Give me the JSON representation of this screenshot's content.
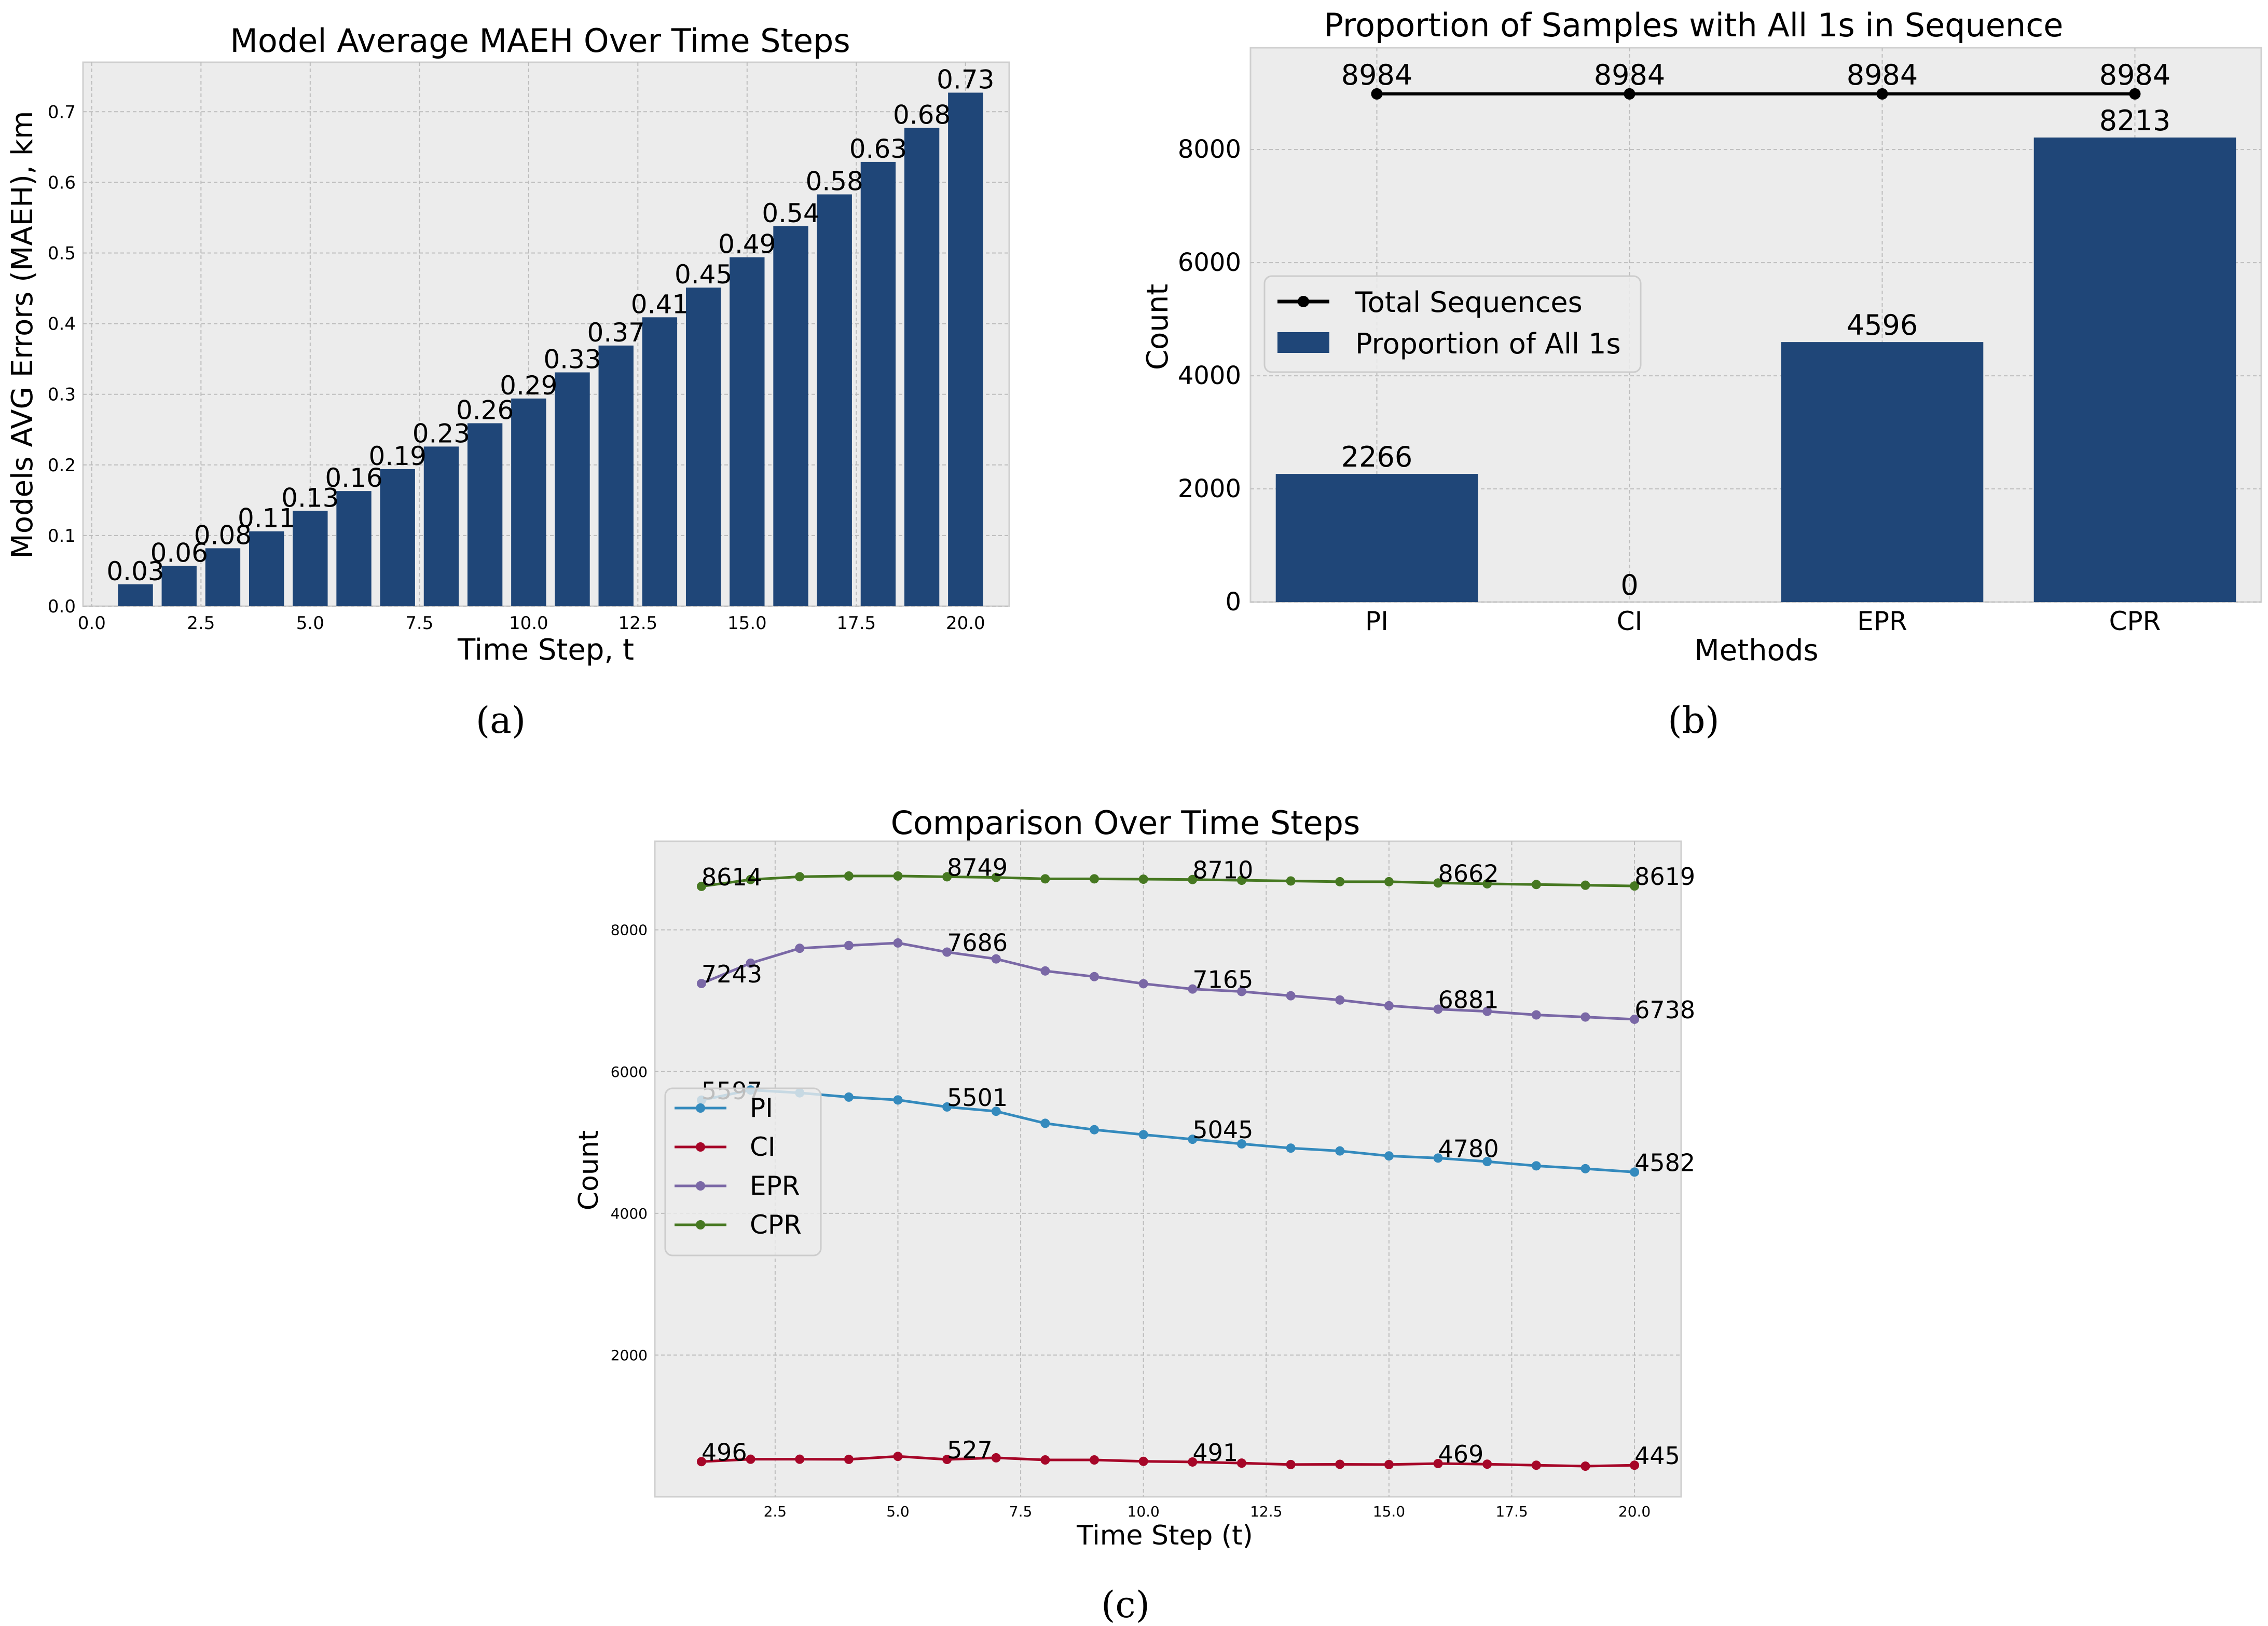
{
  "colors": {
    "bar": "#1f4678",
    "axes_bg": "#ececec",
    "grid": "#bdbdbd",
    "pi": "#348abd",
    "ci": "#a60628",
    "epr": "#7a68a6",
    "cpr": "#467821",
    "total": "#000000"
  },
  "captions": {
    "a": "(a)",
    "b": "(b)",
    "c": "(c)"
  },
  "chart_data": [
    {
      "id": "a",
      "type": "bar",
      "title": "Model Average MAEH Over Time Steps",
      "xlabel": "Time Step, t",
      "ylabel": "Models AVG Errors (MAEH), km",
      "xlim": [
        -0.2,
        21.0
      ],
      "ylim": [
        0,
        0.77
      ],
      "xticks": [
        0.0,
        2.5,
        5.0,
        7.5,
        10.0,
        12.5,
        15.0,
        17.5,
        20.0
      ],
      "xtick_labels": [
        "0.0",
        "2.5",
        "5.0",
        "7.5",
        "10.0",
        "12.5",
        "15.0",
        "17.5",
        "20.0"
      ],
      "yticks": [
        0.0,
        0.1,
        0.2,
        0.3,
        0.4,
        0.5,
        0.6,
        0.7
      ],
      "ytick_labels": [
        "0.0",
        "0.1",
        "0.2",
        "0.3",
        "0.4",
        "0.5",
        "0.6",
        "0.7"
      ],
      "x": [
        1,
        2,
        3,
        4,
        5,
        6,
        7,
        8,
        9,
        10,
        11,
        12,
        13,
        14,
        15,
        16,
        17,
        18,
        19,
        20
      ],
      "values": [
        0.031,
        0.057,
        0.082,
        0.106,
        0.135,
        0.163,
        0.194,
        0.226,
        0.259,
        0.294,
        0.331,
        0.369,
        0.409,
        0.451,
        0.494,
        0.538,
        0.583,
        0.629,
        0.677,
        0.727
      ],
      "labels": [
        "0.03",
        "0.06",
        "0.08",
        "0.11",
        "0.13",
        "0.16",
        "0.19",
        "0.23",
        "0.26",
        "0.29",
        "0.33",
        "0.37",
        "0.41",
        "0.45",
        "0.49",
        "0.54",
        "0.58",
        "0.63",
        "0.68",
        "0.73"
      ]
    },
    {
      "id": "b",
      "type": "bar",
      "title": "Proportion of Samples with All 1s in Sequence",
      "xlabel": "Methods",
      "ylabel": "Count",
      "ylim": [
        0,
        9800
      ],
      "yticks": [
        0,
        2000,
        4000,
        6000,
        8000
      ],
      "ytick_labels": [
        "0",
        "2000",
        "4000",
        "6000",
        "8000"
      ],
      "categories": [
        "PI",
        "CI",
        "EPR",
        "CPR"
      ],
      "series": [
        {
          "name": "Total Sequences",
          "kind": "line",
          "values": [
            8984,
            8984,
            8984,
            8984
          ],
          "labels": [
            "8984",
            "8984",
            "8984",
            "8984"
          ]
        },
        {
          "name": "Proportion of All 1s",
          "kind": "bar",
          "values": [
            2266,
            0,
            4596,
            8213
          ],
          "labels": [
            "2266",
            "0",
            "4596",
            "8213"
          ]
        }
      ],
      "legend": {
        "position": "center-left",
        "entries": [
          "Total Sequences",
          "Proportion of All 1s"
        ]
      }
    },
    {
      "id": "c",
      "type": "line",
      "title": "Comparison Over Time Steps",
      "xlabel": "Time Step (t)",
      "ylabel": "Count",
      "xlim": [
        0.05,
        20.95
      ],
      "ylim": [
        0,
        9250
      ],
      "xticks": [
        2.5,
        5.0,
        7.5,
        10.0,
        12.5,
        15.0,
        17.5,
        20.0
      ],
      "xtick_labels": [
        "2.5",
        "5.0",
        "7.5",
        "10.0",
        "12.5",
        "15.0",
        "17.5",
        "20.0"
      ],
      "yticks": [
        2000,
        4000,
        6000,
        8000
      ],
      "ytick_labels": [
        "2000",
        "4000",
        "6000",
        "8000"
      ],
      "x": [
        1,
        2,
        3,
        4,
        5,
        6,
        7,
        8,
        9,
        10,
        11,
        12,
        13,
        14,
        15,
        16,
        17,
        18,
        19,
        20
      ],
      "annotate_at": [
        1,
        6,
        11,
        16,
        20
      ],
      "series": [
        {
          "name": "PI",
          "values": [
            5597,
            5740,
            5700,
            5640,
            5600,
            5501,
            5440,
            5270,
            5180,
            5110,
            5045,
            4980,
            4920,
            4880,
            4810,
            4780,
            4730,
            4670,
            4630,
            4582
          ],
          "labels": [
            "5597",
            "5501",
            "5045",
            "4780",
            "4582"
          ]
        },
        {
          "name": "CI",
          "values": [
            496,
            530,
            530,
            528,
            570,
            527,
            550,
            520,
            520,
            500,
            491,
            475,
            455,
            458,
            455,
            469,
            460,
            445,
            432,
            445
          ],
          "labels": [
            "496",
            "527",
            "491",
            "469",
            "445"
          ]
        },
        {
          "name": "EPR",
          "values": [
            7243,
            7530,
            7740,
            7780,
            7815,
            7686,
            7590,
            7420,
            7340,
            7240,
            7165,
            7130,
            7070,
            7010,
            6930,
            6881,
            6850,
            6800,
            6770,
            6738
          ],
          "labels": [
            "7243",
            "7686",
            "7165",
            "6881",
            "6738"
          ]
        },
        {
          "name": "CPR",
          "values": [
            8614,
            8710,
            8750,
            8760,
            8760,
            8749,
            8740,
            8720,
            8720,
            8715,
            8710,
            8700,
            8690,
            8680,
            8680,
            8662,
            8650,
            8640,
            8630,
            8619
          ],
          "labels": [
            "8614",
            "8749",
            "8710",
            "8662",
            "8619"
          ]
        }
      ],
      "legend": {
        "position": "center-left",
        "entries": [
          "PI",
          "CI",
          "EPR",
          "CPR"
        ]
      }
    }
  ]
}
